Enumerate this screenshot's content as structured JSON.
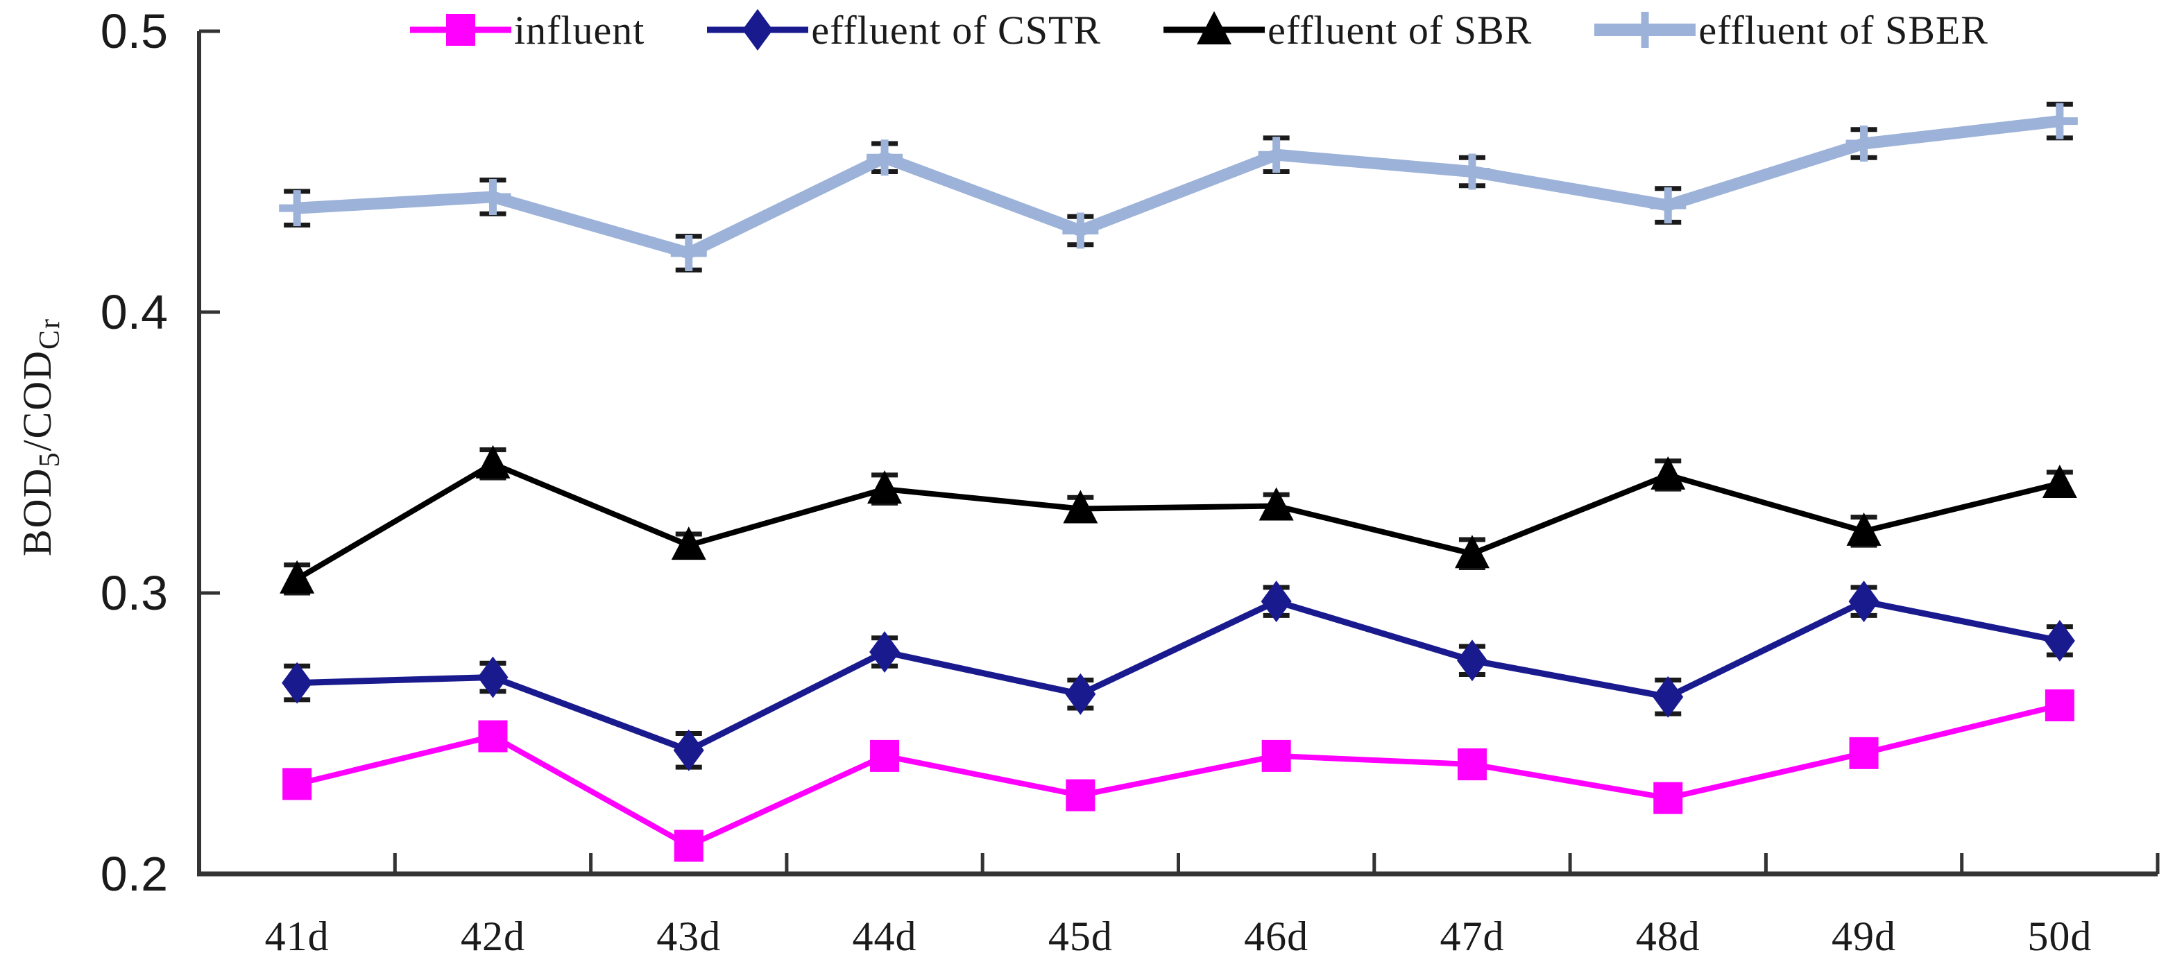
{
  "figure": {
    "background": "#ffffff",
    "axis_color": "#333333",
    "error_cap_color": "#1a1a1a"
  },
  "axes": {
    "y": {
      "label_parts": {
        "main1": "BOD",
        "sub1": "5",
        "main2": "/COD",
        "sub2": "Cr"
      },
      "tick_labels": [
        "0.5",
        "0.4",
        "0.3",
        "0.2"
      ]
    },
    "x": {
      "tick_labels": [
        "41d",
        "42d",
        "43d",
        "44d",
        "45d",
        "46d",
        "47d",
        "48d",
        "49d",
        "50d"
      ]
    }
  },
  "chart_data": {
    "type": "line",
    "title": "",
    "xlabel": "",
    "ylabel": "BOD5/CODCr",
    "ylim": [
      0.2,
      0.5
    ],
    "yticks": [
      0.5,
      0.4,
      0.3,
      0.2
    ],
    "grid": false,
    "error_bars": true,
    "legend_position": "top",
    "categories": [
      "41d",
      "42d",
      "43d",
      "44d",
      "45d",
      "46d",
      "47d",
      "48d",
      "49d",
      "50d"
    ],
    "series": [
      {
        "name": "influent",
        "color": "#FF00FF",
        "marker": "square",
        "line_width": 8,
        "values": [
          0.232,
          0.249,
          0.21,
          0.242,
          0.228,
          0.242,
          0.239,
          0.227,
          0.243,
          0.26
        ],
        "errors": [
          0.003,
          0.003,
          0.004,
          0.003,
          0.003,
          0.004,
          0.003,
          0.004,
          0.003,
          0.003
        ]
      },
      {
        "name": "effluent of CSTR",
        "color": "#1A1A8F",
        "marker": "diamond",
        "line_width": 9,
        "values": [
          0.268,
          0.27,
          0.244,
          0.279,
          0.264,
          0.297,
          0.276,
          0.263,
          0.297,
          0.283
        ],
        "errors": [
          0.006,
          0.005,
          0.006,
          0.005,
          0.005,
          0.005,
          0.005,
          0.006,
          0.005,
          0.005
        ]
      },
      {
        "name": "effluent of SBR",
        "color": "#000000",
        "marker": "triangle",
        "line_width": 8,
        "values": [
          0.305,
          0.346,
          0.317,
          0.337,
          0.33,
          0.331,
          0.314,
          0.342,
          0.322,
          0.339
        ],
        "errors": [
          0.005,
          0.005,
          0.004,
          0.005,
          0.004,
          0.004,
          0.005,
          0.005,
          0.005,
          0.004
        ]
      },
      {
        "name": "effluent of SBER",
        "color": "#9CB2D8",
        "marker": "plus",
        "line_width": 17,
        "values": [
          0.437,
          0.441,
          0.421,
          0.455,
          0.429,
          0.456,
          0.45,
          0.438,
          0.46,
          0.468
        ],
        "errors": [
          0.006,
          0.006,
          0.006,
          0.005,
          0.005,
          0.006,
          0.005,
          0.006,
          0.005,
          0.006
        ]
      }
    ]
  }
}
